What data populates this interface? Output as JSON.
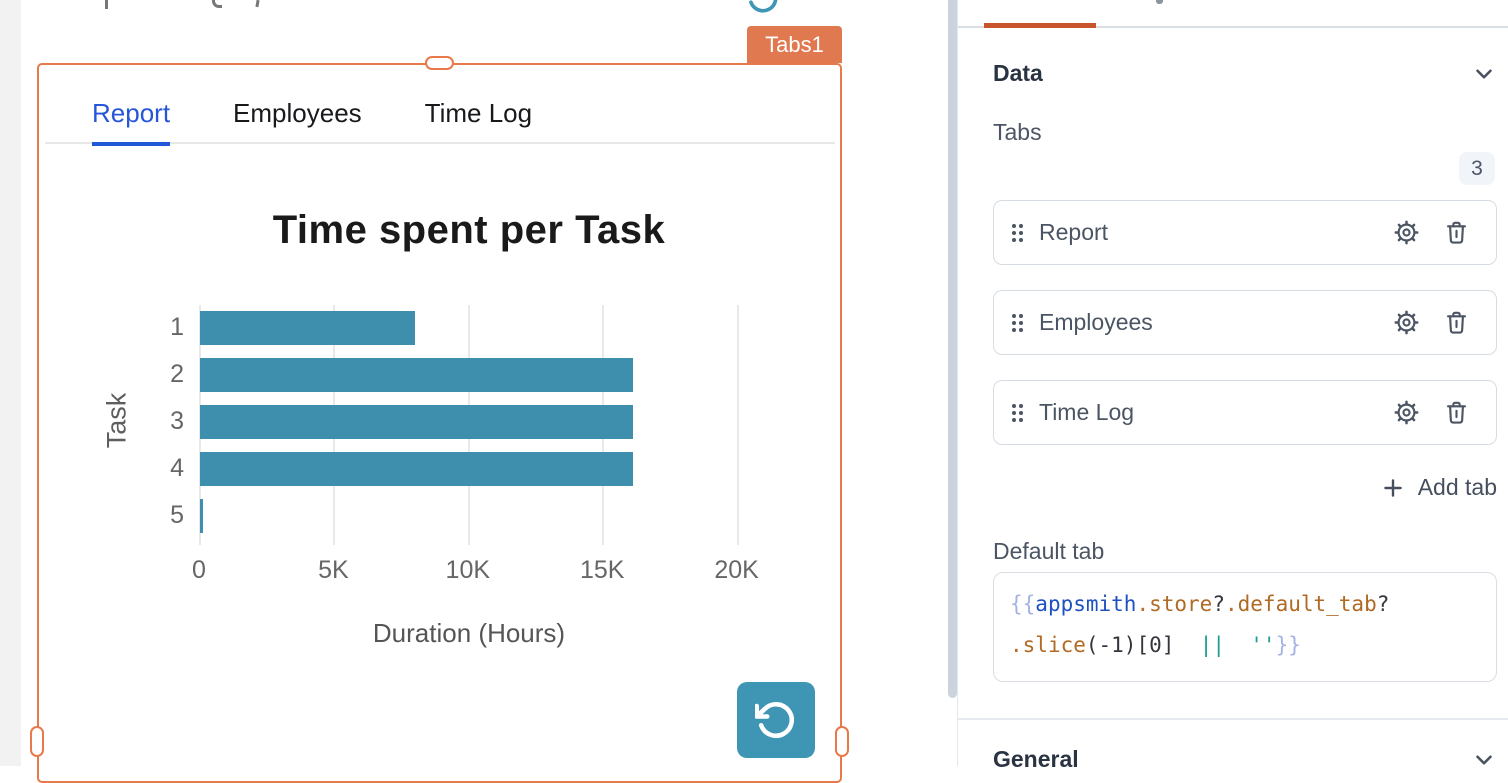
{
  "canvas": {
    "widget_name_badge": "Tabs1",
    "widget_tabs": [
      {
        "label": "Report",
        "active": true
      },
      {
        "label": "Employees",
        "active": false
      },
      {
        "label": "Time Log",
        "active": false
      }
    ]
  },
  "chart_data": {
    "type": "bar",
    "orientation": "horizontal",
    "title": "Time spent per Task",
    "categories": [
      "1",
      "2",
      "3",
      "4",
      "5"
    ],
    "values": [
      8000,
      16100,
      16100,
      16100,
      75
    ],
    "xlabel": "Duration (Hours)",
    "ylabel": "Task",
    "x_ticks": [
      "0",
      "5K",
      "10K",
      "15K",
      "20K"
    ],
    "x_tick_values": [
      0,
      5000,
      10000,
      15000,
      20000
    ],
    "xlim": [
      0,
      21500
    ],
    "grid": "vertical",
    "legend": "none",
    "bar_color": "#3E8FAD"
  },
  "panel": {
    "data_section": {
      "title": "Data"
    },
    "tabs_field": {
      "label": "Tabs",
      "count": "3",
      "items": [
        "Report",
        "Employees",
        "Time Log"
      ],
      "add_button": "Add tab"
    },
    "default_tab": {
      "label": "Default tab",
      "code_text": "{{appsmith.store?.default_tab?.slice(-1)[0] || ''}}",
      "code_lines": [
        [
          {
            "t": "{{",
            "c": "brace"
          },
          {
            "t": "appsmith",
            "c": "var"
          },
          {
            "t": ".",
            "c": "dot"
          },
          {
            "t": "store",
            "c": "prop"
          },
          {
            "t": "?",
            "c": "punct"
          },
          {
            "t": ".",
            "c": "dot"
          },
          {
            "t": "default_tab",
            "c": "prop"
          },
          {
            "t": "?",
            "c": "punct"
          }
        ],
        [
          {
            "t": ".",
            "c": "dot"
          },
          {
            "t": "slice",
            "c": "prop"
          },
          {
            "t": "(-1)[0]",
            "c": "punct"
          },
          {
            "t": "  ",
            "c": "punct"
          },
          {
            "t": "||",
            "c": "op"
          },
          {
            "t": "  ",
            "c": "punct"
          },
          {
            "t": "''",
            "c": "str"
          },
          {
            "t": "}}",
            "c": "brace"
          }
        ]
      ]
    },
    "general_section": {
      "title": "General"
    }
  },
  "colors": {
    "selection_orange": "#E7794A",
    "badge_orange": "#E0794F",
    "pane_accent_orange": "#C9542B",
    "active_tab_blue": "#2656D9",
    "bar_teal": "#3E8FAD",
    "refresh_button_teal": "#3E96B4"
  }
}
